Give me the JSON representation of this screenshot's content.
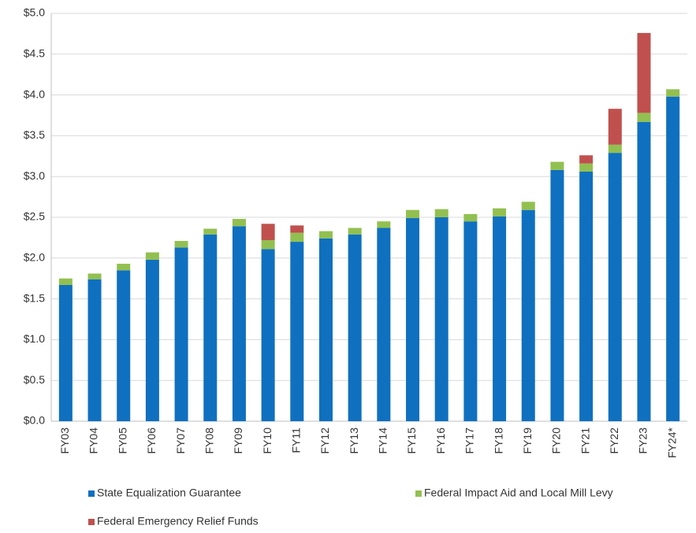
{
  "chart_data": {
    "type": "bar",
    "stacked": true,
    "categories": [
      "FY03",
      "FY04",
      "FY05",
      "FY06",
      "FY07",
      "FY08",
      "FY09",
      "FY10",
      "FY11",
      "FY12",
      "FY13",
      "FY14",
      "FY15",
      "FY16",
      "FY17",
      "FY18",
      "FY19",
      "FY20",
      "FY21",
      "FY22",
      "FY23",
      "FY24*"
    ],
    "series": [
      {
        "name": "State Equalization Guarantee",
        "color": "#0f70c0",
        "values": [
          1.67,
          1.74,
          1.85,
          1.98,
          2.13,
          2.29,
          2.39,
          2.11,
          2.2,
          2.24,
          2.29,
          2.37,
          2.49,
          2.5,
          2.45,
          2.51,
          2.59,
          3.08,
          3.06,
          3.29,
          3.67,
          3.98
        ]
      },
      {
        "name": "Federal Impact Aid and Local Mill Levy",
        "color": "#92c050",
        "values": [
          0.08,
          0.07,
          0.08,
          0.09,
          0.08,
          0.07,
          0.09,
          0.11,
          0.11,
          0.09,
          0.08,
          0.08,
          0.1,
          0.1,
          0.09,
          0.1,
          0.1,
          0.1,
          0.1,
          0.1,
          0.11,
          0.09
        ]
      },
      {
        "name": "Federal Emergency Relief Funds",
        "color": "#c0504d",
        "values": [
          null,
          null,
          null,
          null,
          null,
          null,
          null,
          0.2,
          0.09,
          null,
          null,
          null,
          null,
          null,
          null,
          null,
          null,
          null,
          0.1,
          0.44,
          0.98,
          null
        ]
      }
    ],
    "ylim": [
      0,
      5
    ],
    "yticks": [
      {
        "value": 0,
        "label": "$0.0"
      },
      {
        "value": 0.5,
        "label": "$0.5"
      },
      {
        "value": 1,
        "label": "$1.0"
      },
      {
        "value": 1.5,
        "label": "$1.5"
      },
      {
        "value": 2,
        "label": "$2.0"
      },
      {
        "value": 2.5,
        "label": "$2.5"
      },
      {
        "value": 3,
        "label": "$3.0"
      },
      {
        "value": 3.5,
        "label": "$3.5"
      },
      {
        "value": 4,
        "label": "$4.0"
      },
      {
        "value": 4.5,
        "label": "$4.5"
      },
      {
        "value": 5,
        "label": "$5.0"
      }
    ],
    "grid": true
  }
}
